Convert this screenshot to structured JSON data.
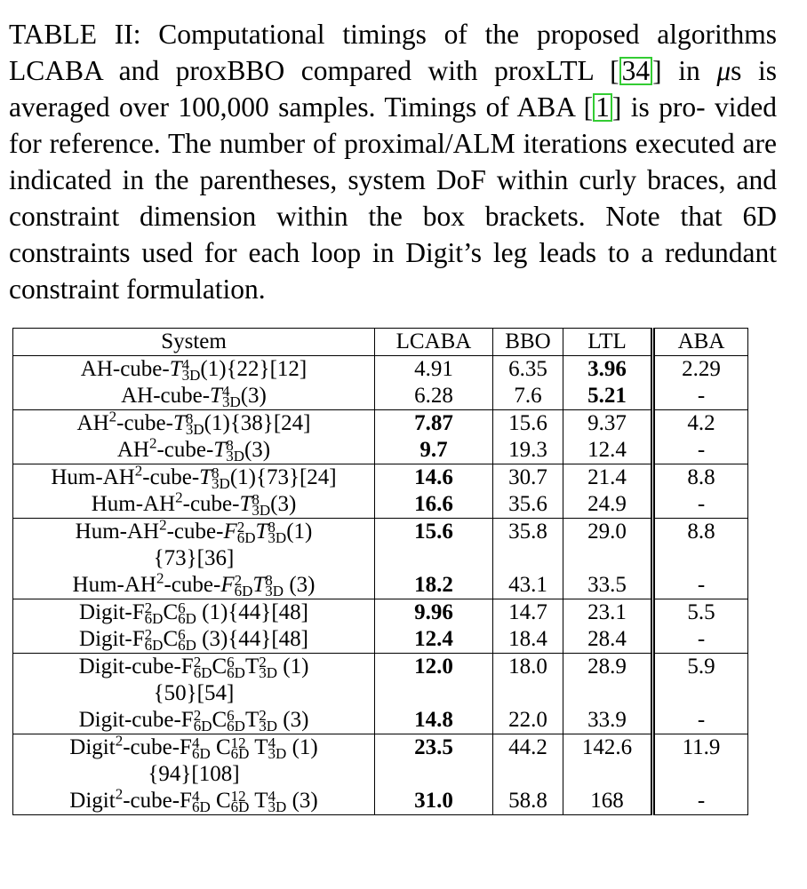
{
  "caption": {
    "l1a": "TABLE II: Computational timings of the proposed algorithms",
    "l2a": "LCABA and proxBBO compared with proxLTL [",
    "cite1": "34",
    "l2b": "] in ",
    "mu": "μ",
    "l2c": "s is",
    "l3a": "averaged over 100,000 samples. Timings of ABA [",
    "cite2": "1",
    "l3b": "] is pro-",
    "rest": "vided for reference. The number of proximal/ALM iterations executed are indicated in the parentheses, system DoF within curly braces, and constraint dimension within the box brackets. Note that 6D constraints used for each loop in Digit’s leg leads to a redundant constraint formulation."
  },
  "header": {
    "system": "System",
    "lcaba": "LCABA",
    "bbo": "BBO",
    "ltl": "LTL",
    "aba": "ABA"
  },
  "rows": [
    {
      "lc": "4.91",
      "bbo": "6.35",
      "ltl": "3.96",
      "aba": "2.29"
    },
    {
      "lc": "6.28",
      "bbo": "7.6",
      "ltl": "5.21",
      "aba": "-"
    },
    {
      "lc": "7.87",
      "bbo": "15.6",
      "ltl": "9.37",
      "aba": "4.2"
    },
    {
      "lc": "9.7",
      "bbo": "19.3",
      "ltl": "12.4",
      "aba": "-"
    },
    {
      "lc": "14.6",
      "bbo": "30.7",
      "ltl": "21.4",
      "aba": "8.8"
    },
    {
      "lc": "16.6",
      "bbo": "35.6",
      "ltl": "24.9",
      "aba": "-"
    },
    {
      "lc": "15.6",
      "bbo": "35.8",
      "ltl": "29.0",
      "aba": "8.8"
    },
    {
      "lc": "18.2",
      "bbo": "43.1",
      "ltl": "33.5",
      "aba": "-"
    },
    {
      "lc": "9.96",
      "bbo": "14.7",
      "ltl": "23.1",
      "aba": "5.5"
    },
    {
      "lc": "12.4",
      "bbo": "18.4",
      "ltl": "28.4",
      "aba": "-"
    },
    {
      "lc": "12.0",
      "bbo": "18.0",
      "ltl": "28.9",
      "aba": "5.9"
    },
    {
      "lc": "14.8",
      "bbo": "22.0",
      "ltl": "33.9",
      "aba": "-"
    },
    {
      "lc": "23.5",
      "bbo": "44.2",
      "ltl": "142.6",
      "aba": "11.9"
    },
    {
      "lc": "31.0",
      "bbo": "58.8",
      "ltl": "168",
      "aba": "-"
    }
  ],
  "sys": {
    "ah": "AH",
    "cube": "-cube-",
    "hum": "Hum-",
    "digit": "Digit",
    "digitf": "Digit-F",
    "digitcube": "Digit-cube-F",
    "T": "T",
    "F": "F",
    "C": "C",
    "s3D": "3D",
    "s6D": "6D",
    "p4": "4",
    "p8": "8",
    "p2": "2",
    "p6": "6",
    "p12": "12",
    "it1": "(1)",
    "it3": "(3)",
    "d22": "{22}",
    "d38": "{38}",
    "d73": "{73}",
    "d44": "{44}",
    "d50": "{50}",
    "d94": "{94}",
    "c12": "[12]",
    "c24": "[24]",
    "c36": "[36]",
    "c48": "[48]",
    "c54": "[54]",
    "c108": "[108]"
  }
}
